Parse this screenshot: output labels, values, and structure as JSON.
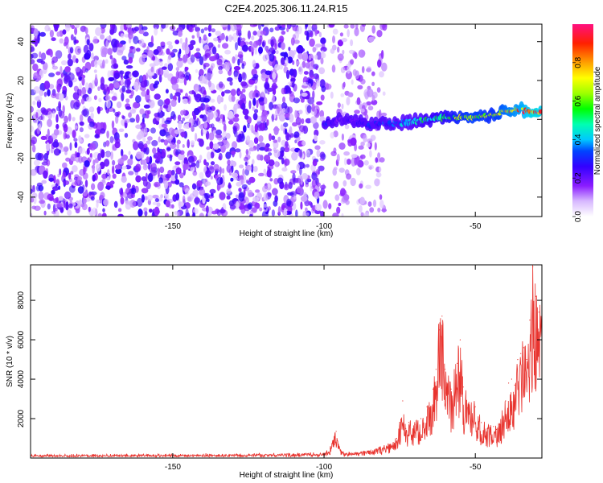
{
  "title": "C2E4.2025.306.11.24.R15",
  "chart_data": [
    {
      "type": "heatmap",
      "xlabel": "Height of straight line (km)",
      "ylabel": "Frequency (Hz)",
      "xlim": [
        -197,
        -28
      ],
      "ylim": [
        -50,
        49
      ],
      "xticks": [
        -150,
        -100,
        -50
      ],
      "yticks": [
        -40,
        -20,
        0,
        20,
        40
      ],
      "colorbar": {
        "label": "Normalized spectral amplitude",
        "range": [
          0,
          1
        ],
        "ticks": [
          0.0,
          0.2,
          0.4,
          0.6,
          0.8
        ]
      },
      "signal_track": {
        "x": [
          -100,
          -95,
          -90,
          -85,
          -80,
          -75,
          -70,
          -65,
          -60,
          -55,
          -50,
          -45,
          -40,
          -35,
          -30,
          -28
        ],
        "frequency": [
          -2,
          0,
          -1,
          -3,
          -2,
          -2,
          -1,
          0,
          1,
          1,
          1,
          2,
          4,
          5,
          4,
          3
        ],
        "amplitude": [
          0.3,
          0.2,
          0.25,
          0.3,
          0.35,
          0.4,
          0.5,
          0.55,
          0.6,
          0.7,
          0.75,
          0.7,
          0.8,
          0.85,
          0.95,
          0.9
        ]
      },
      "noise_floor_amplitude": 0.05
    },
    {
      "type": "line",
      "xlabel": "Height of straight line (km)",
      "ylabel": "SNR (10 * v/v)",
      "xlim": [
        -197,
        -28
      ],
      "ylim": [
        0,
        9800
      ],
      "xticks": [
        -150,
        -100,
        -50
      ],
      "yticks": [
        2000,
        4000,
        6000,
        8000
      ],
      "series": [
        {
          "name": "SNR",
          "color": "#e8332e",
          "x": [
            -197,
            -150,
            -110,
            -100,
            -98,
            -97,
            -96,
            -95,
            -94,
            -90,
            -85,
            -82,
            -78,
            -76,
            -75,
            -74,
            -73,
            -72,
            -70,
            -68,
            -66,
            -64,
            -63,
            -62,
            -61,
            -60,
            -58,
            -56,
            -55,
            -54,
            -52,
            -50,
            -48,
            -46,
            -44,
            -43,
            -42,
            -40,
            -39,
            -38,
            -37,
            -36,
            -35,
            -34,
            -33,
            -32,
            -31,
            -30,
            -29,
            -28
          ],
          "y": [
            150,
            170,
            200,
            250,
            500,
            900,
            1350,
            600,
            300,
            250,
            350,
            500,
            700,
            1000,
            1800,
            2900,
            1500,
            1800,
            1700,
            2000,
            2600,
            3500,
            4500,
            6500,
            7200,
            4500,
            3500,
            4800,
            6000,
            3600,
            2700,
            2600,
            1800,
            1500,
            1600,
            1450,
            1700,
            2900,
            3800,
            4000,
            3700,
            5000,
            5300,
            5600,
            5000,
            7000,
            9700,
            8200,
            7400,
            6900
          ]
        }
      ]
    }
  ]
}
